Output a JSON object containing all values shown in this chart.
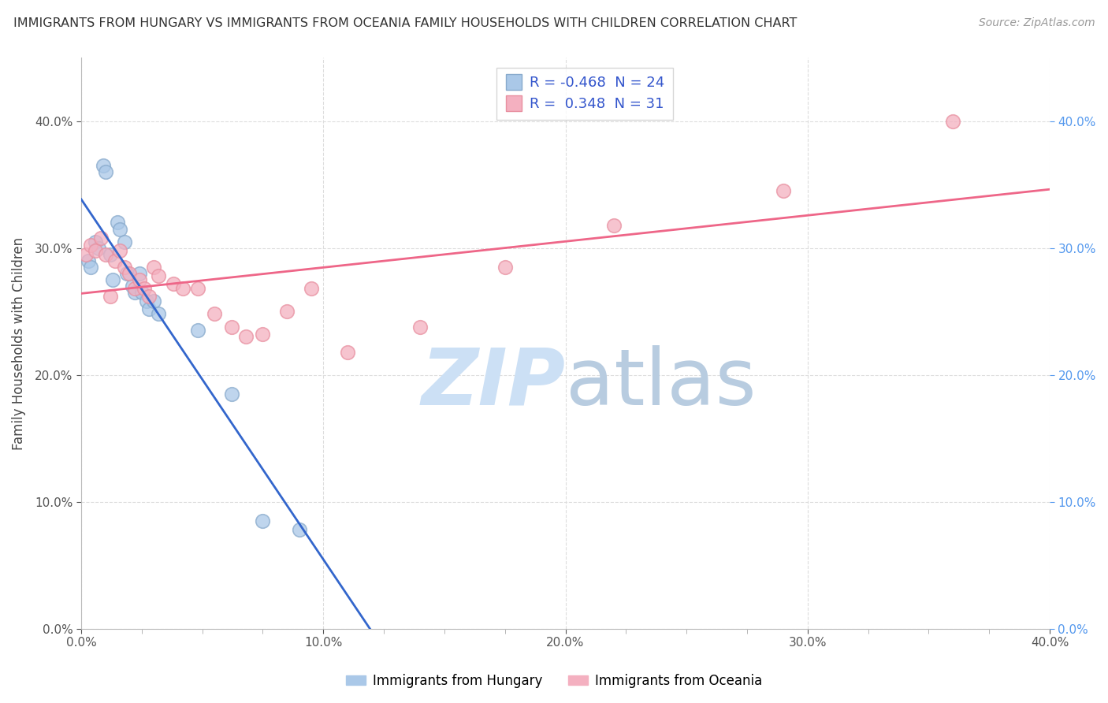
{
  "title": "IMMIGRANTS FROM HUNGARY VS IMMIGRANTS FROM OCEANIA FAMILY HOUSEHOLDS WITH CHILDREN CORRELATION CHART",
  "source": "Source: ZipAtlas.com",
  "ylabel": "Family Households with Children",
  "xlim": [
    0.0,
    0.4
  ],
  "ylim": [
    0.0,
    0.45
  ],
  "x_tick_values": [
    0.0,
    0.1,
    0.2,
    0.3,
    0.4
  ],
  "y_tick_values": [
    0.0,
    0.1,
    0.2,
    0.3,
    0.4
  ],
  "legend_hungary_R": "-0.468",
  "legend_hungary_N": "24",
  "legend_oceania_R": "0.348",
  "legend_oceania_N": "31",
  "hungary_color": "#aac8e8",
  "hungary_edge_color": "#88aacc",
  "oceania_color": "#f4b0c0",
  "oceania_edge_color": "#e890a0",
  "hungary_line_color": "#3366cc",
  "oceania_line_color": "#ee6688",
  "background_color": "#ffffff",
  "grid_color": "#dddddd",
  "hungary_x": [
    0.003,
    0.004,
    0.006,
    0.007,
    0.009,
    0.01,
    0.012,
    0.013,
    0.015,
    0.016,
    0.018,
    0.019,
    0.021,
    0.022,
    0.024,
    0.025,
    0.027,
    0.028,
    0.03,
    0.032,
    0.048,
    0.062,
    0.075,
    0.09
  ],
  "hungary_y": [
    0.29,
    0.285,
    0.305,
    0.3,
    0.365,
    0.36,
    0.295,
    0.275,
    0.32,
    0.315,
    0.305,
    0.28,
    0.27,
    0.265,
    0.28,
    0.265,
    0.258,
    0.252,
    0.258,
    0.248,
    0.235,
    0.185,
    0.085,
    0.078
  ],
  "oceania_x": [
    0.002,
    0.004,
    0.006,
    0.008,
    0.01,
    0.012,
    0.014,
    0.016,
    0.018,
    0.02,
    0.022,
    0.024,
    0.026,
    0.028,
    0.03,
    0.032,
    0.038,
    0.042,
    0.048,
    0.055,
    0.062,
    0.068,
    0.075,
    0.085,
    0.095,
    0.11,
    0.14,
    0.175,
    0.22,
    0.29,
    0.36
  ],
  "oceania_y": [
    0.295,
    0.302,
    0.298,
    0.308,
    0.295,
    0.262,
    0.29,
    0.298,
    0.285,
    0.28,
    0.268,
    0.275,
    0.268,
    0.262,
    0.285,
    0.278,
    0.272,
    0.268,
    0.268,
    0.248,
    0.238,
    0.23,
    0.232,
    0.25,
    0.268,
    0.218,
    0.238,
    0.285,
    0.318,
    0.345,
    0.4
  ],
  "watermark_zip_color": "#cce0f5",
  "watermark_atlas_color": "#b8cce0",
  "watermark_fontsize": 72
}
